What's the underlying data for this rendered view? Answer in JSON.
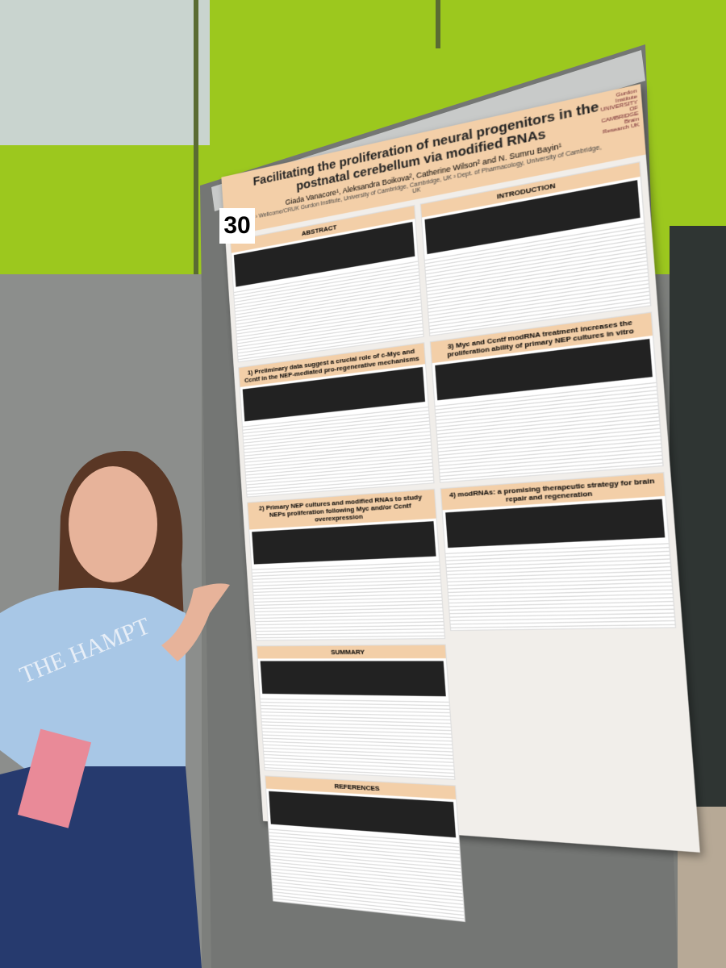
{
  "board_number": "30",
  "poster": {
    "title": "Facilitating the proliferation of neural progenitors in the postnatal cerebellum via modified RNAs",
    "authors": "Giada Vanacore¹, Aleksandra Boikova², Catherine Wilson² and N. Sumru Bayin¹",
    "affiliations": "¹ Wellcome/CRUK Gurdon Institute, University of Cambridge, Cambridge, UK ² Dept. of Pharmacology, University of Cambridge, UK",
    "logos": [
      "Gurdon Institute",
      "UNIVERSITY OF CAMBRIDGE",
      "Brain Research UK"
    ],
    "left_sections": [
      "ABSTRACT",
      "1) Preliminary data suggest a crucial role of c-Myc and Ccntf in the NEP-mediated pro-regenerative mechanisms",
      "2) Primary NEP cultures and modified RNAs to study NEPs proliferation following Myc and/or Ccntf overexpression",
      "SUMMARY",
      "REFERENCES"
    ],
    "right_sections": [
      "INTRODUCTION",
      "3) Myc and Ccntf modRNA treatment increases the proliferation ability of primary NEP cultures in vitro",
      "4) modRNAs: a promising therapeutic strategy for brain repair and regeneration"
    ]
  },
  "shirt_text": "THE HAMPT"
}
